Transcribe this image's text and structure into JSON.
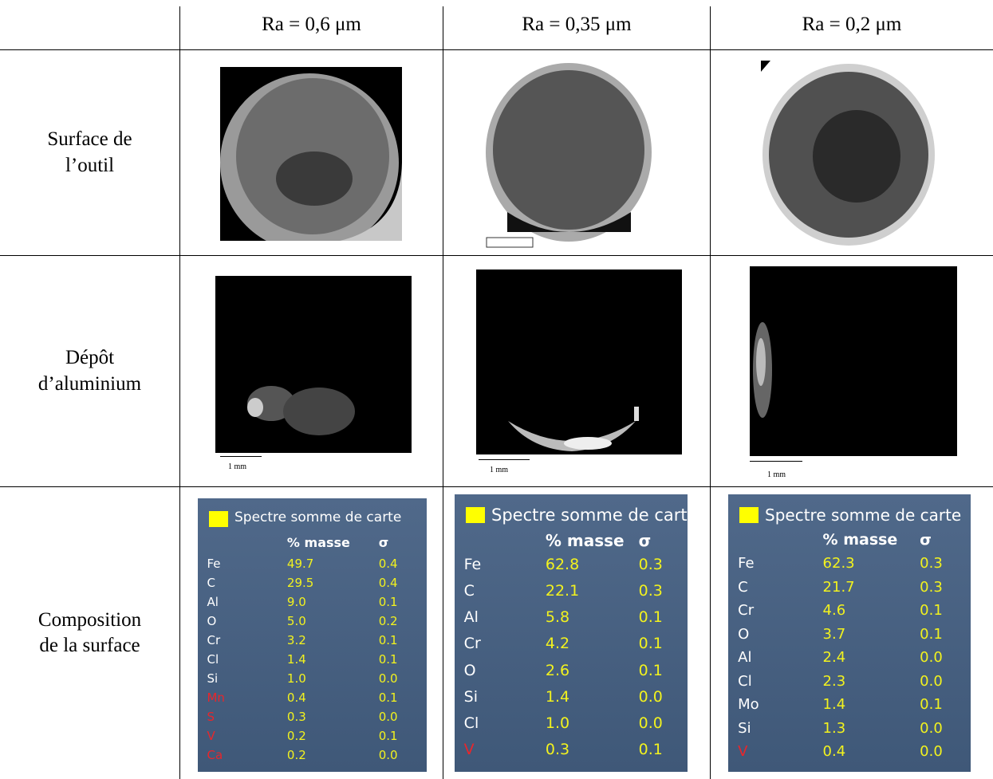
{
  "table": {
    "header": [
      "Ra = 0,6 μm",
      "Ra = 0,35 μm",
      "Ra = 0,2 μm"
    ],
    "row_labels": [
      "Surface de\nl’outil",
      "Dépôt\nd’aluminium",
      "Composition\nde la surface"
    ],
    "scale_labels": [
      "1 mm",
      "1 mm",
      "1 mm"
    ],
    "compositions": [
      {
        "title": "Spectre somme de carte",
        "mass_header": "% masse",
        "sigma_header": "σ",
        "rows": [
          {
            "element": "Fe",
            "mass": "49.7",
            "sigma": "0.4",
            "color": "#ffffff"
          },
          {
            "element": "C",
            "mass": "29.5",
            "sigma": "0.4",
            "color": "#ffffff"
          },
          {
            "element": "Al",
            "mass": "9.0",
            "sigma": "0.1",
            "color": "#ffffff"
          },
          {
            "element": "O",
            "mass": "5.0",
            "sigma": "0.2",
            "color": "#ffffff"
          },
          {
            "element": "Cr",
            "mass": "3.2",
            "sigma": "0.1",
            "color": "#ffffff"
          },
          {
            "element": "Cl",
            "mass": "1.4",
            "sigma": "0.1",
            "color": "#ffffff"
          },
          {
            "element": "Si",
            "mass": "1.0",
            "sigma": "0.0",
            "color": "#ffffff"
          },
          {
            "element": "Mn",
            "mass": "0.4",
            "sigma": "0.1",
            "color": "#e8262b"
          },
          {
            "element": "S",
            "mass": "0.3",
            "sigma": "0.0",
            "color": "#e8262b"
          },
          {
            "element": "V",
            "mass": "0.2",
            "sigma": "0.1",
            "color": "#e8262b"
          },
          {
            "element": "Ca",
            "mass": "0.2",
            "sigma": "0.0",
            "color": "#e8262b"
          }
        ]
      },
      {
        "title": "Spectre somme de carte",
        "mass_header": "% masse",
        "sigma_header": "σ",
        "rows": [
          {
            "element": "Fe",
            "mass": "62.8",
            "sigma": "0.3",
            "color": "#ffffff"
          },
          {
            "element": "C",
            "mass": "22.1",
            "sigma": "0.3",
            "color": "#ffffff"
          },
          {
            "element": "Al",
            "mass": "5.8",
            "sigma": "0.1",
            "color": "#ffffff"
          },
          {
            "element": "Cr",
            "mass": "4.2",
            "sigma": "0.1",
            "color": "#ffffff"
          },
          {
            "element": "O",
            "mass": "2.6",
            "sigma": "0.1",
            "color": "#ffffff"
          },
          {
            "element": "Si",
            "mass": "1.4",
            "sigma": "0.0",
            "color": "#ffffff"
          },
          {
            "element": "Cl",
            "mass": "1.0",
            "sigma": "0.0",
            "color": "#ffffff"
          },
          {
            "element": "V",
            "mass": "0.3",
            "sigma": "0.1",
            "color": "#e8262b"
          }
        ]
      },
      {
        "title": "Spectre somme de carte",
        "mass_header": "% masse",
        "sigma_header": "σ",
        "rows": [
          {
            "element": "Fe",
            "mass": "62.3",
            "sigma": "0.3",
            "color": "#ffffff"
          },
          {
            "element": "C",
            "mass": "21.7",
            "sigma": "0.3",
            "color": "#ffffff"
          },
          {
            "element": "Cr",
            "mass": "4.6",
            "sigma": "0.1",
            "color": "#ffffff"
          },
          {
            "element": "O",
            "mass": "3.7",
            "sigma": "0.1",
            "color": "#ffffff"
          },
          {
            "element": "Al",
            "mass": "2.4",
            "sigma": "0.0",
            "color": "#ffffff"
          },
          {
            "element": "Cl",
            "mass": "2.3",
            "sigma": "0.0",
            "color": "#ffffff"
          },
          {
            "element": "Mo",
            "mass": "1.4",
            "sigma": "0.1",
            "color": "#ffffff"
          },
          {
            "element": "Si",
            "mass": "1.3",
            "sigma": "0.0",
            "color": "#ffffff"
          },
          {
            "element": "V",
            "mass": "0.4",
            "sigma": "0.0",
            "color": "#e8262b"
          }
        ]
      }
    ]
  }
}
